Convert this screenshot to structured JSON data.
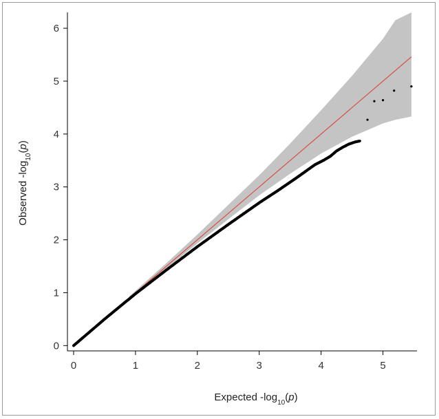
{
  "chart_data": {
    "type": "scatter",
    "title": "",
    "xlabel": {
      "prefix": "Expected -log",
      "sub": "10",
      "paren_open": "(",
      "var": "p",
      "paren_close": ")"
    },
    "ylabel": {
      "prefix": "Observed -log",
      "sub": "10",
      "paren_open": "(",
      "var": "p",
      "paren_close": ")"
    },
    "xlim": [
      -0.1,
      5.55
    ],
    "ylim": [
      -0.1,
      6.3
    ],
    "xticks": [
      0,
      1,
      2,
      3,
      4,
      5
    ],
    "yticks": [
      0,
      1,
      2,
      3,
      4,
      5,
      6
    ],
    "xtick_labels": [
      "0",
      "1",
      "2",
      "3",
      "4",
      "5"
    ],
    "ytick_labels": [
      "0",
      "1",
      "2",
      "3",
      "4",
      "5",
      "6"
    ],
    "grid": false,
    "colors": {
      "points": "#000000",
      "reference_line": "#d9453a",
      "confidence_band": "#c4c4c4",
      "axis": "#000000"
    },
    "reference_line": {
      "x": [
        0,
        5.46
      ],
      "y": [
        0,
        5.46
      ]
    },
    "confidence_band": {
      "x": [
        0.9,
        1.5,
        2.0,
        2.5,
        3.0,
        3.5,
        4.0,
        4.5,
        5.0,
        5.2,
        5.46
      ],
      "lower": [
        0.88,
        1.46,
        1.93,
        2.39,
        2.84,
        3.25,
        3.63,
        3.95,
        4.2,
        4.27,
        4.33
      ],
      "upper": [
        0.93,
        1.56,
        2.1,
        2.66,
        3.22,
        3.82,
        4.45,
        5.1,
        5.8,
        6.15,
        6.3
      ]
    },
    "series": [
      {
        "x": [
          0,
          0.5,
          1.0,
          1.5,
          2.0,
          2.5,
          3.0,
          3.3,
          3.6,
          3.9,
          4.05,
          4.15,
          4.25,
          4.35,
          4.45,
          4.55,
          4.63,
          4.75,
          4.86,
          5.0,
          5.18,
          5.46
        ],
        "y": [
          0,
          0.5,
          0.98,
          1.43,
          1.87,
          2.29,
          2.7,
          2.93,
          3.17,
          3.42,
          3.51,
          3.58,
          3.68,
          3.75,
          3.81,
          3.85,
          3.87,
          4.27,
          4.62,
          4.64,
          4.82,
          4.9
        ]
      }
    ]
  }
}
